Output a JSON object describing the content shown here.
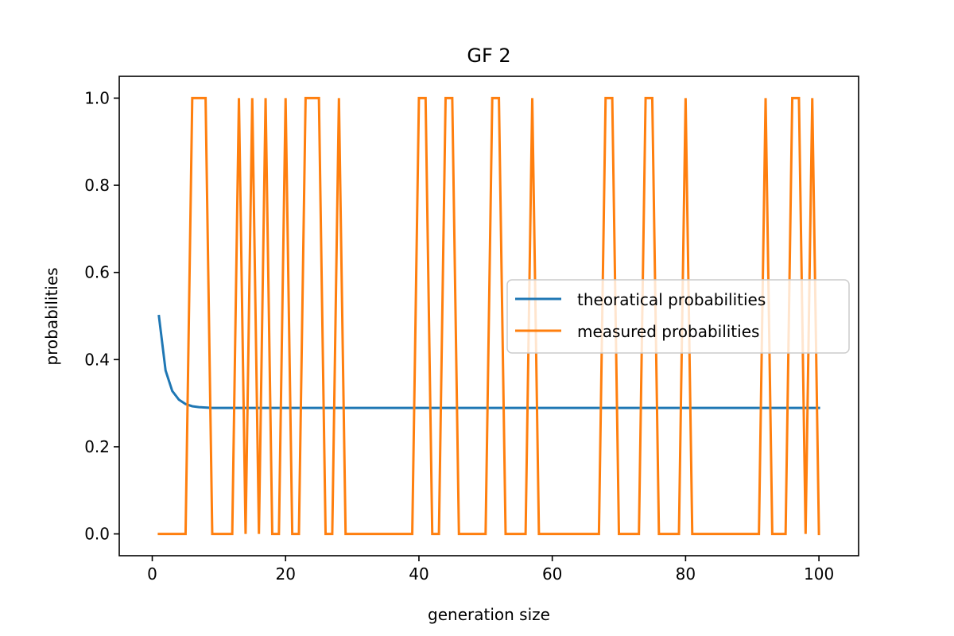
{
  "chart_data": {
    "type": "line",
    "title": "GF 2",
    "xlabel": "generation size",
    "ylabel": "probabilities",
    "xlim": [
      -4.95,
      105.95
    ],
    "ylim": [
      -0.05,
      1.05
    ],
    "xticks": [
      0,
      20,
      40,
      60,
      80,
      100
    ],
    "yticks": [
      0.0,
      0.2,
      0.4,
      0.6,
      0.8,
      1.0
    ],
    "xtick_labels": [
      "0",
      "20",
      "40",
      "60",
      "80",
      "100"
    ],
    "ytick_labels": [
      "0.0",
      "0.2",
      "0.4",
      "0.6",
      "0.8",
      "1.0"
    ],
    "grid": false,
    "legend_position": "center-right",
    "x": [
      1,
      2,
      3,
      4,
      5,
      6,
      7,
      8,
      9,
      10,
      11,
      12,
      13,
      14,
      15,
      16,
      17,
      18,
      19,
      20,
      21,
      22,
      23,
      24,
      25,
      26,
      27,
      28,
      29,
      30,
      31,
      32,
      33,
      34,
      35,
      36,
      37,
      38,
      39,
      40,
      41,
      42,
      43,
      44,
      45,
      46,
      47,
      48,
      49,
      50,
      51,
      52,
      53,
      54,
      55,
      56,
      57,
      58,
      59,
      60,
      61,
      62,
      63,
      64,
      65,
      66,
      67,
      68,
      69,
      70,
      71,
      72,
      73,
      74,
      75,
      76,
      77,
      78,
      79,
      80,
      81,
      82,
      83,
      84,
      85,
      86,
      87,
      88,
      89,
      90,
      91,
      92,
      93,
      94,
      95,
      96,
      97,
      98,
      99,
      100
    ],
    "series": [
      {
        "name": "theoratical probabilities",
        "color": "#1f77b4",
        "values": [
          0.5,
          0.375,
          0.328,
          0.308,
          0.298,
          0.293,
          0.291,
          0.29,
          0.289,
          0.289,
          0.289,
          0.289,
          0.289,
          0.289,
          0.289,
          0.289,
          0.289,
          0.289,
          0.289,
          0.289,
          0.289,
          0.289,
          0.289,
          0.289,
          0.289,
          0.289,
          0.289,
          0.289,
          0.289,
          0.289,
          0.289,
          0.289,
          0.289,
          0.289,
          0.289,
          0.289,
          0.289,
          0.289,
          0.289,
          0.289,
          0.289,
          0.289,
          0.289,
          0.289,
          0.289,
          0.289,
          0.289,
          0.289,
          0.289,
          0.289,
          0.289,
          0.289,
          0.289,
          0.289,
          0.289,
          0.289,
          0.289,
          0.289,
          0.289,
          0.289,
          0.289,
          0.289,
          0.289,
          0.289,
          0.289,
          0.289,
          0.289,
          0.289,
          0.289,
          0.289,
          0.289,
          0.289,
          0.289,
          0.289,
          0.289,
          0.289,
          0.289,
          0.289,
          0.289,
          0.289,
          0.289,
          0.289,
          0.289,
          0.289,
          0.289,
          0.289,
          0.289,
          0.289,
          0.289,
          0.289,
          0.289,
          0.289,
          0.289,
          0.289,
          0.289,
          0.289,
          0.289,
          0.289,
          0.289,
          0.289
        ]
      },
      {
        "name": "measured probabilities",
        "color": "#ff7f0e",
        "values": [
          0,
          0,
          0,
          0,
          0,
          1,
          1,
          1,
          0,
          0,
          0,
          0,
          1,
          0,
          1,
          0,
          1,
          0,
          0,
          1,
          0,
          0,
          1,
          1,
          1,
          0,
          0,
          1,
          0,
          0,
          0,
          0,
          0,
          0,
          0,
          0,
          0,
          0,
          0,
          1,
          1,
          0,
          0,
          1,
          1,
          0,
          0,
          0,
          0,
          0,
          1,
          1,
          0,
          0,
          0,
          0,
          1,
          0,
          0,
          0,
          0,
          0,
          0,
          0,
          0,
          0,
          0,
          1,
          1,
          0,
          0,
          0,
          0,
          1,
          1,
          0,
          0,
          0,
          0,
          1,
          0,
          0,
          0,
          0,
          0,
          0,
          0,
          0,
          0,
          0,
          0,
          1,
          0,
          0,
          0,
          1,
          1,
          0,
          1,
          0
        ]
      }
    ]
  }
}
